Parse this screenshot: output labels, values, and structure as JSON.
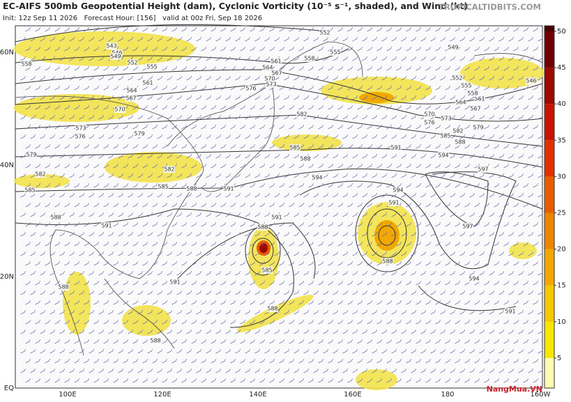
{
  "header": {
    "title": "EC-AIFS 500mb Geopotential Height (dam), Cyclonic Vorticity (10⁻⁵ s⁻¹, shaded), and Wind (kt)",
    "subtitle": "Init: 12z Sep 11 2026   Forecast Hour: [156]   valid at 00z Fri, Sep 18 2026",
    "brand": "TROPICALTIDBITS.COM"
  },
  "map": {
    "lat_labels": [
      "60N",
      "40N",
      "20N",
      "EQ"
    ],
    "lon_labels": [
      "100E",
      "120E",
      "140E",
      "160E",
      "180",
      "160W"
    ],
    "contour_labels": [
      "552",
      "543",
      "546",
      "549",
      "552",
      "555",
      "558",
      "558",
      "555",
      "549",
      "561",
      "564",
      "567",
      "570",
      "573",
      "576",
      "561",
      "564",
      "567",
      "570",
      "573",
      "576",
      "579",
      "582",
      "579",
      "582",
      "585",
      "588",
      "591",
      "585",
      "588",
      "591",
      "582",
      "585",
      "588",
      "594",
      "591",
      "594",
      "588",
      "585",
      "582",
      "579",
      "576",
      "573",
      "570",
      "567",
      "564",
      "561",
      "558",
      "555",
      "552",
      "546",
      "597",
      "597",
      "594",
      "591",
      "588",
      "594",
      "591",
      "591",
      "588",
      "585",
      "588",
      "591",
      "588",
      "588"
    ]
  },
  "colorbar": {
    "ticks": [
      5,
      10,
      15,
      20,
      25,
      30,
      35,
      40,
      45,
      50
    ],
    "colors": [
      "#fffbb0",
      "#f7e600",
      "#f5c800",
      "#f2a800",
      "#ee8400",
      "#e85c00",
      "#e03000",
      "#c81400",
      "#9c0a00",
      "#700000",
      "#4a0000"
    ]
  },
  "watermark": "NangMua.VN"
}
